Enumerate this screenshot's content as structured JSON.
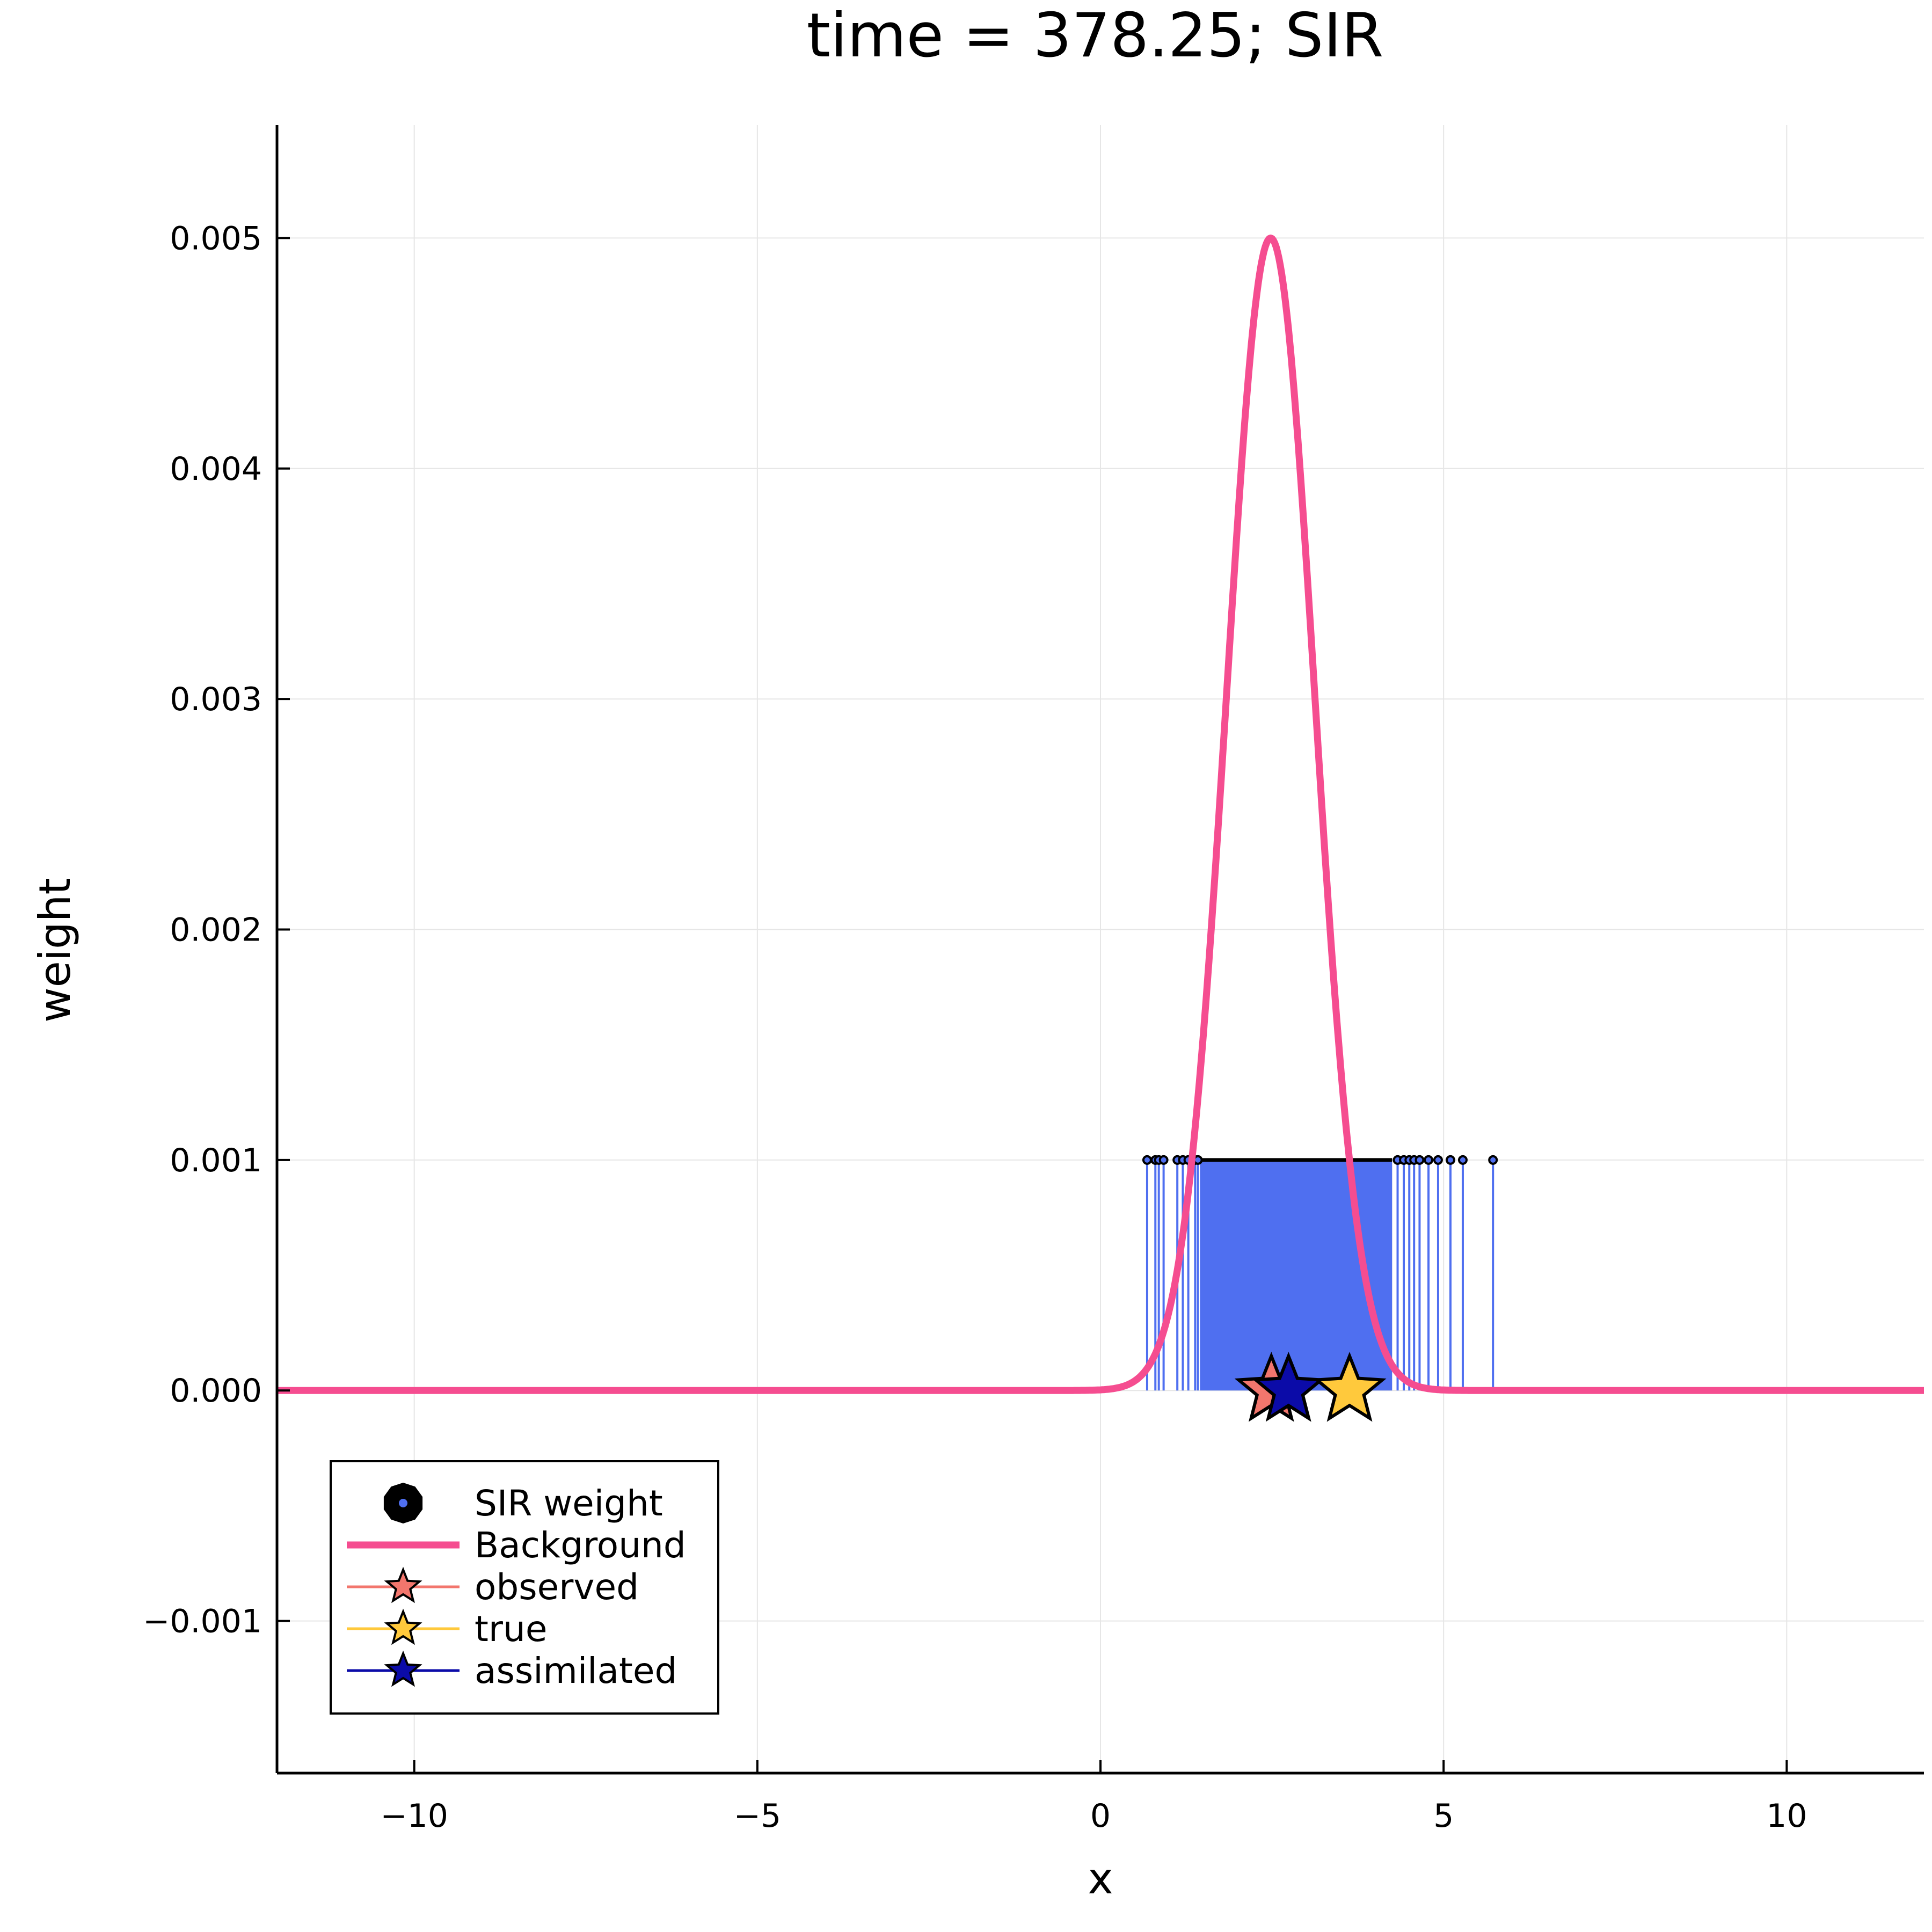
{
  "chart_data": {
    "type": "line",
    "title": "time = 378.25; SIR",
    "xlabel": "x",
    "ylabel": "weight",
    "xlim": [
      -12,
      12
    ],
    "ylim": [
      -0.00166,
      0.00549
    ],
    "grid": true,
    "legend_position": "bottom-left",
    "x_ticks": [
      -10,
      -5,
      0,
      5,
      10
    ],
    "x_tick_labels": [
      "−10",
      "−5",
      "0",
      "5",
      "10"
    ],
    "y_ticks": [
      -0.001,
      0.0,
      0.001,
      0.002,
      0.003,
      0.004,
      0.005
    ],
    "y_tick_labels": [
      "−0.001",
      "0.000",
      "0.001",
      "0.002",
      "0.003",
      "0.004",
      "0.005"
    ],
    "legend": [
      {
        "label": "SIR weight",
        "kind": "scatter-stem",
        "color": "#4f6ff0"
      },
      {
        "label": "Background",
        "kind": "line",
        "color": "#f54d90"
      },
      {
        "label": "observed",
        "kind": "star",
        "color": "#f2766d"
      },
      {
        "label": "true",
        "kind": "star",
        "color": "#ffc93c"
      },
      {
        "label": "assimilated",
        "kind": "star",
        "color": "#0b0ba8"
      }
    ],
    "series": [
      {
        "name": "Background",
        "type": "line",
        "color": "#f54d90",
        "function": "gaussian",
        "mean": 2.48,
        "sd": 0.64,
        "peak": 0.005
      },
      {
        "name": "SIR weight",
        "type": "stem",
        "color": "#4f6ff0",
        "weight": 0.001,
        "dense_range": [
          1.45,
          4.25
        ],
        "x": [
          0.68,
          0.8,
          0.85,
          0.92,
          1.12,
          1.2,
          1.28,
          1.38,
          1.42,
          4.33,
          4.42,
          4.5,
          4.57,
          4.65,
          4.78,
          4.92,
          5.1,
          5.28,
          5.72
        ]
      },
      {
        "name": "observed",
        "type": "marker",
        "marker": "star",
        "color": "#f2766d",
        "x": 2.49,
        "y": 0.0
      },
      {
        "name": "assimilated",
        "type": "marker",
        "marker": "star",
        "color": "#0b0ba8",
        "x": 2.74,
        "y": 0.0
      },
      {
        "name": "true",
        "type": "marker",
        "marker": "star",
        "color": "#ffc93c",
        "x": 3.63,
        "y": 0.0
      }
    ]
  }
}
